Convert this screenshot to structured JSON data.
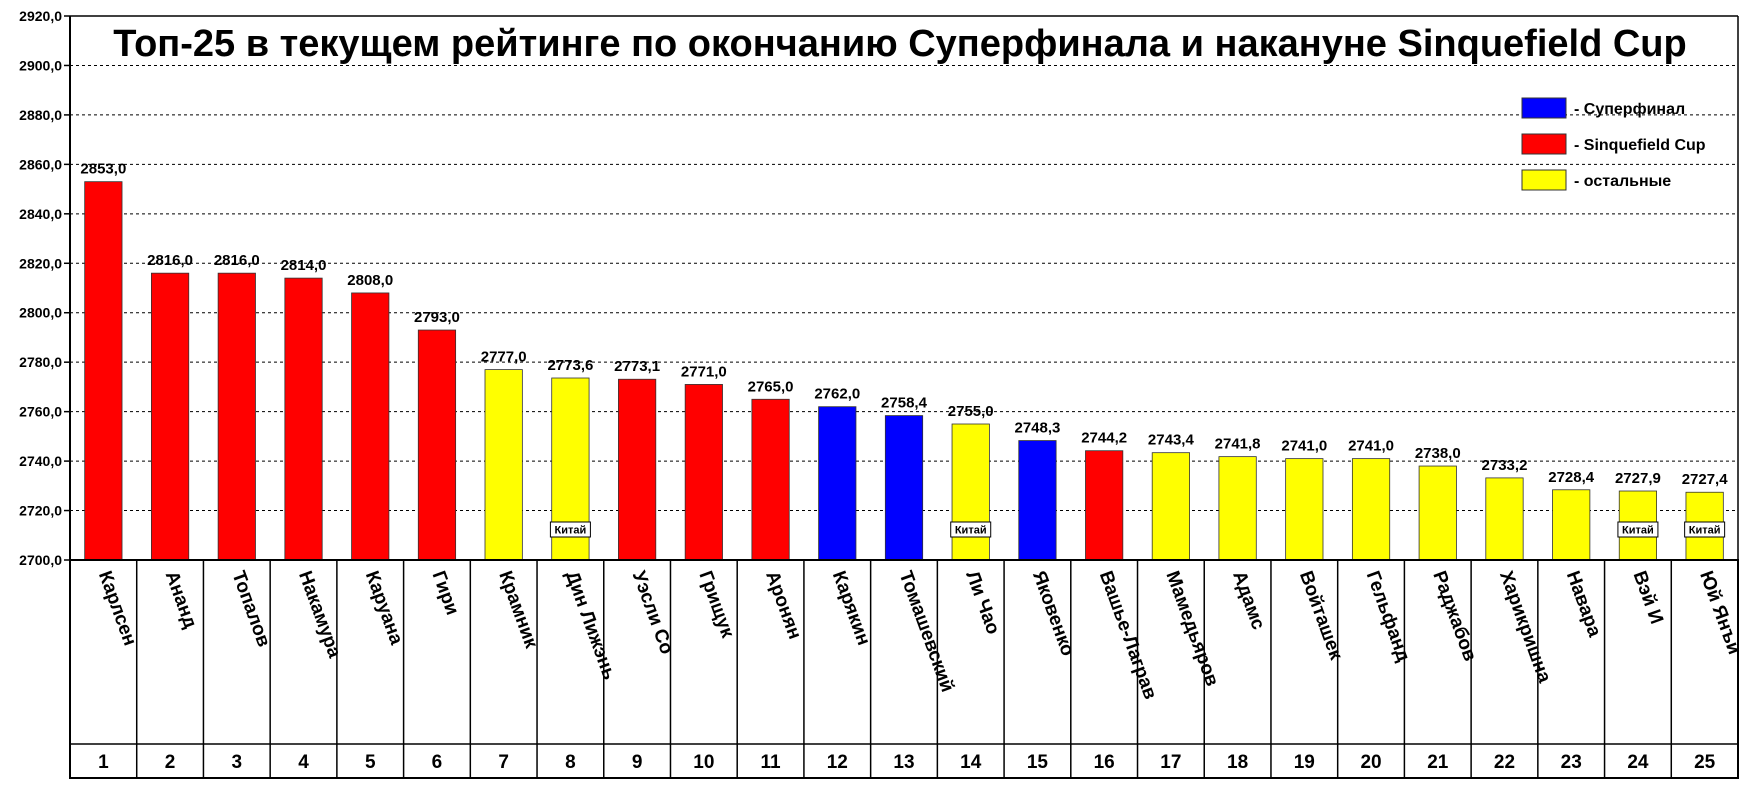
{
  "chart_data": {
    "type": "bar",
    "title": "Топ-25 в текущем рейтинге по окончанию Суперфинала и накануне Sinquefield Cup",
    "ylim": [
      2700,
      2920
    ],
    "yticks": [
      "2700,0",
      "2720,0",
      "2740,0",
      "2760,0",
      "2780,0",
      "2800,0",
      "2820,0",
      "2840,0",
      "2860,0",
      "2880,0",
      "2900,0",
      "2920,0"
    ],
    "grid": true,
    "legend_position": "top-right",
    "groups": {
      "superfinal": {
        "label": "- Суперфинал",
        "color": "#0000ff"
      },
      "sinquefield": {
        "label": "- Sinquefield Cup",
        "color": "#ff0000"
      },
      "others": {
        "label": "- остальные",
        "color": "#ffff00"
      }
    },
    "tag_label": "Китай",
    "players": [
      {
        "rank": "1",
        "name": "Карлсен",
        "value": 2853.0,
        "label": "2853,0",
        "group": "sinquefield",
        "tag": false
      },
      {
        "rank": "2",
        "name": "Ананд",
        "value": 2816.0,
        "label": "2816,0",
        "group": "sinquefield",
        "tag": false
      },
      {
        "rank": "3",
        "name": "Топалов",
        "value": 2816.0,
        "label": "2816,0",
        "group": "sinquefield",
        "tag": false
      },
      {
        "rank": "4",
        "name": "Накамура",
        "value": 2814.0,
        "label": "2814,0",
        "group": "sinquefield",
        "tag": false
      },
      {
        "rank": "5",
        "name": "Каруана",
        "value": 2808.0,
        "label": "2808,0",
        "group": "sinquefield",
        "tag": false
      },
      {
        "rank": "6",
        "name": "Гири",
        "value": 2793.0,
        "label": "2793,0",
        "group": "sinquefield",
        "tag": false
      },
      {
        "rank": "7",
        "name": "Крамник",
        "value": 2777.0,
        "label": "2777,0",
        "group": "others",
        "tag": false
      },
      {
        "rank": "8",
        "name": "Дин Лижэнь",
        "value": 2773.6,
        "label": "2773,6",
        "group": "others",
        "tag": true
      },
      {
        "rank": "9",
        "name": "Уэсли Со",
        "value": 2773.1,
        "label": "2773,1",
        "group": "sinquefield",
        "tag": false
      },
      {
        "rank": "10",
        "name": "Грищук",
        "value": 2771.0,
        "label": "2771,0",
        "group": "sinquefield",
        "tag": false
      },
      {
        "rank": "11",
        "name": "Аронян",
        "value": 2765.0,
        "label": "2765,0",
        "group": "sinquefield",
        "tag": false
      },
      {
        "rank": "12",
        "name": "Карякин",
        "value": 2762.0,
        "label": "2762,0",
        "group": "superfinal",
        "tag": false
      },
      {
        "rank": "13",
        "name": "Томашевский",
        "value": 2758.4,
        "label": "2758,4",
        "group": "superfinal",
        "tag": false
      },
      {
        "rank": "14",
        "name": "Ли Чао",
        "value": 2755.0,
        "label": "2755,0",
        "group": "others",
        "tag": true
      },
      {
        "rank": "15",
        "name": "Яковенко",
        "value": 2748.3,
        "label": "2748,3",
        "group": "superfinal",
        "tag": false
      },
      {
        "rank": "16",
        "name": "Вашье-Лаграв",
        "value": 2744.2,
        "label": "2744,2",
        "group": "sinquefield",
        "tag": false
      },
      {
        "rank": "17",
        "name": "Мамедьяров",
        "value": 2743.4,
        "label": "2743,4",
        "group": "others",
        "tag": false
      },
      {
        "rank": "18",
        "name": "Адамс",
        "value": 2741.8,
        "label": "2741,8",
        "group": "others",
        "tag": false
      },
      {
        "rank": "19",
        "name": "Войташек",
        "value": 2741.0,
        "label": "2741,0",
        "group": "others",
        "tag": false
      },
      {
        "rank": "20",
        "name": "Гельфанд",
        "value": 2741.0,
        "label": "2741,0",
        "group": "others",
        "tag": false
      },
      {
        "rank": "21",
        "name": "Раджабов",
        "value": 2738.0,
        "label": "2738,0",
        "group": "others",
        "tag": false
      },
      {
        "rank": "22",
        "name": "Харикришна",
        "value": 2733.2,
        "label": "2733,2",
        "group": "others",
        "tag": false
      },
      {
        "rank": "23",
        "name": "Навара",
        "value": 2728.4,
        "label": "2728,4",
        "group": "others",
        "tag": false
      },
      {
        "rank": "24",
        "name": "Вэй И",
        "value": 2727.9,
        "label": "2727,9",
        "group": "others",
        "tag": true
      },
      {
        "rank": "25",
        "name": "Юй Янъи",
        "value": 2727.4,
        "label": "2727,4",
        "group": "others",
        "tag": true
      }
    ]
  }
}
